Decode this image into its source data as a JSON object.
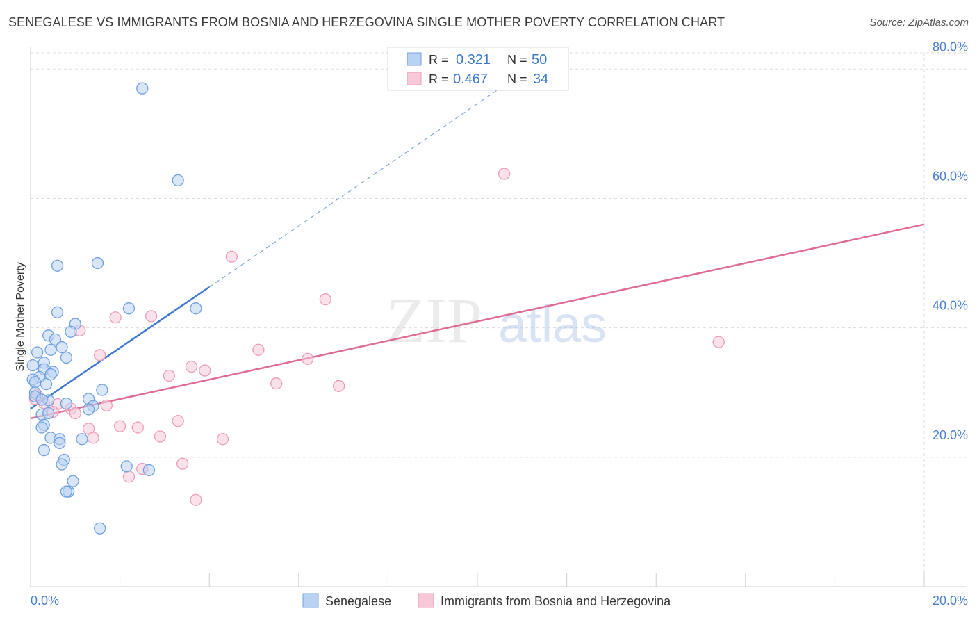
{
  "chart_data": {
    "type": "scatter",
    "title": "SENEGALESE VS IMMIGRANTS FROM BOSNIA AND HERZEGOVINA SINGLE MOTHER POVERTY CORRELATION CHART",
    "source": "Source: ZipAtlas.com",
    "ylabel": "Single Mother Poverty",
    "xlabel": "",
    "xlim": [
      0,
      20
    ],
    "ylim": [
      0,
      82.5
    ],
    "x_ticks": [
      "0.0%",
      "20.0%"
    ],
    "y_ticks": [
      {
        "value": 20,
        "label": "20.0%"
      },
      {
        "value": 40,
        "label": "40.0%"
      },
      {
        "value": 60,
        "label": "60.0%"
      },
      {
        "value": 80,
        "label": "80.0%"
      }
    ],
    "watermark": {
      "part1": "ZIP",
      "part2": "atlas"
    },
    "legend_stats": [
      {
        "r_label": "R = ",
        "r_value": "0.321",
        "n_label": "N = ",
        "n_value": "50"
      },
      {
        "r_label": "R = ",
        "r_value": "0.467",
        "n_label": "N = ",
        "n_value": "34"
      }
    ],
    "series": [
      {
        "name": "Senegalese",
        "color": "#6fa0e0",
        "fill": "#b9d1f2",
        "line_color": "#3c78d0",
        "trend": {
          "x0": 0.0,
          "y0": 27.5,
          "x1": 4.0,
          "y1": 46.3,
          "dash_to_x": 10.5,
          "dash_to_y": 77.0
        },
        "points": [
          [
            2.5,
            77.0
          ],
          [
            3.3,
            62.8
          ],
          [
            1.5,
            50.0
          ],
          [
            0.6,
            49.6
          ],
          [
            0.6,
            42.4
          ],
          [
            2.2,
            43.0
          ],
          [
            3.7,
            43.0
          ],
          [
            1.0,
            40.6
          ],
          [
            0.9,
            39.4
          ],
          [
            0.4,
            38.8
          ],
          [
            0.55,
            38.2
          ],
          [
            0.7,
            37.0
          ],
          [
            0.45,
            36.6
          ],
          [
            0.15,
            36.2
          ],
          [
            0.8,
            35.4
          ],
          [
            0.3,
            34.6
          ],
          [
            0.05,
            34.2
          ],
          [
            0.3,
            33.6
          ],
          [
            0.5,
            33.2
          ],
          [
            0.45,
            32.8
          ],
          [
            0.2,
            32.4
          ],
          [
            0.05,
            32.0
          ],
          [
            0.1,
            31.6
          ],
          [
            0.35,
            31.3
          ],
          [
            1.6,
            30.4
          ],
          [
            0.1,
            30.0
          ],
          [
            1.3,
            29.0
          ],
          [
            0.4,
            28.8
          ],
          [
            0.8,
            28.3
          ],
          [
            1.4,
            27.9
          ],
          [
            1.3,
            27.4
          ],
          [
            0.25,
            26.6
          ],
          [
            0.4,
            26.8
          ],
          [
            0.3,
            25.0
          ],
          [
            0.25,
            24.6
          ],
          [
            0.45,
            23.0
          ],
          [
            0.65,
            22.8
          ],
          [
            1.15,
            22.8
          ],
          [
            0.65,
            22.2
          ],
          [
            0.3,
            21.1
          ],
          [
            0.75,
            19.6
          ],
          [
            0.7,
            18.9
          ],
          [
            2.15,
            18.6
          ],
          [
            2.65,
            18.0
          ],
          [
            0.95,
            16.3
          ],
          [
            0.85,
            14.7
          ],
          [
            0.8,
            14.7
          ],
          [
            1.55,
            9.0
          ],
          [
            0.1,
            29.4
          ],
          [
            0.25,
            28.9
          ]
        ]
      },
      {
        "name": "Immigrants from Bosnia and Herzegovina",
        "color": "#ee9cb8",
        "fill": "#f8c8d9",
        "line_color": "#e06b94",
        "trend": {
          "x0": 0.0,
          "y0": 26.0,
          "x1": 20.0,
          "y1": 56.0
        },
        "points": [
          [
            10.6,
            63.8
          ],
          [
            4.5,
            51.0
          ],
          [
            6.6,
            44.4
          ],
          [
            1.9,
            41.6
          ],
          [
            2.7,
            41.8
          ],
          [
            1.1,
            39.6
          ],
          [
            15.4,
            37.8
          ],
          [
            5.1,
            36.6
          ],
          [
            1.55,
            35.8
          ],
          [
            6.2,
            35.2
          ],
          [
            3.6,
            34.0
          ],
          [
            3.9,
            33.4
          ],
          [
            3.1,
            32.6
          ],
          [
            5.5,
            31.4
          ],
          [
            6.9,
            31.0
          ],
          [
            0.1,
            29.0
          ],
          [
            0.3,
            28.4
          ],
          [
            0.6,
            28.2
          ],
          [
            1.7,
            28.0
          ],
          [
            0.9,
            27.5
          ],
          [
            0.5,
            27.0
          ],
          [
            1.0,
            26.8
          ],
          [
            3.3,
            25.6
          ],
          [
            2.0,
            24.8
          ],
          [
            2.4,
            24.6
          ],
          [
            1.3,
            24.4
          ],
          [
            1.4,
            23.0
          ],
          [
            2.9,
            23.2
          ],
          [
            4.3,
            22.8
          ],
          [
            3.4,
            19.0
          ],
          [
            2.5,
            18.2
          ],
          [
            2.2,
            17.0
          ],
          [
            3.7,
            13.4
          ],
          [
            0.15,
            29.6
          ]
        ]
      }
    ]
  }
}
